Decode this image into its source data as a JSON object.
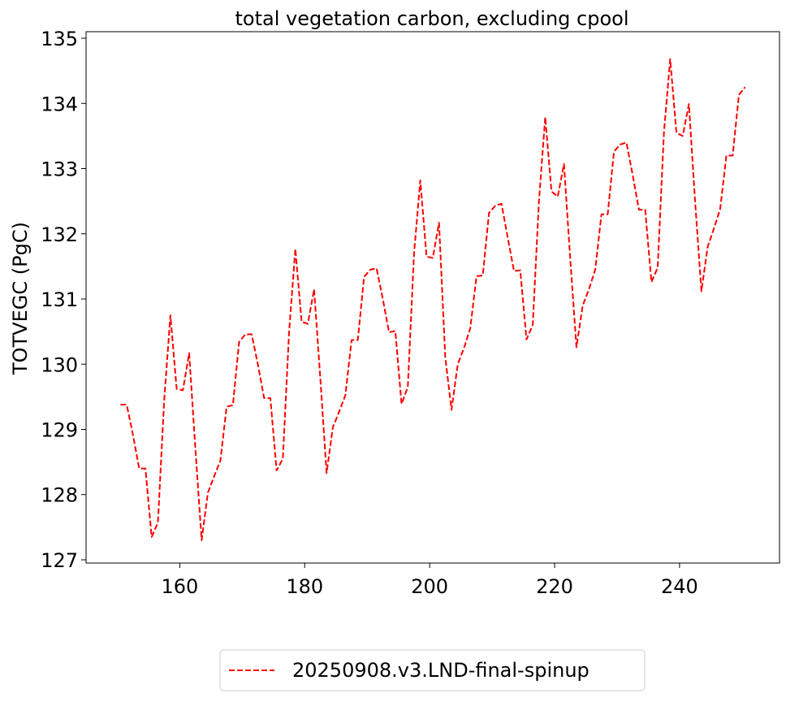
{
  "chart_data": {
    "type": "line",
    "title": "total vegetation carbon, excluding cpool",
    "xlabel": "",
    "ylabel": "TOTVEGC (PgC)",
    "xlim": [
      145,
      256
    ],
    "ylim": [
      126.95,
      135.1
    ],
    "xticks": [
      160,
      180,
      200,
      220,
      240
    ],
    "yticks": [
      127,
      128,
      129,
      130,
      131,
      132,
      133,
      134,
      135
    ],
    "grid": false,
    "legend_position": "bottom-center, below plot",
    "series": [
      {
        "name": "20250908.v3.LND-final-spinup",
        "color": "#ff0000",
        "line_style": "dashed",
        "x": [
          150.5,
          151.5,
          152.5,
          153.5,
          154.5,
          155.5,
          156.5,
          157.5,
          158.5,
          159.5,
          160.5,
          161.5,
          162.5,
          163.5,
          164.5,
          165.5,
          166.5,
          167.5,
          168.5,
          169.5,
          170.5,
          171.5,
          172.5,
          173.5,
          174.5,
          175.5,
          176.5,
          177.5,
          178.5,
          179.5,
          180.5,
          181.5,
          182.5,
          183.5,
          184.5,
          185.5,
          186.5,
          187.5,
          188.5,
          189.5,
          190.5,
          191.5,
          192.5,
          193.5,
          194.5,
          195.5,
          196.5,
          197.5,
          198.5,
          199.5,
          200.5,
          201.5,
          202.5,
          203.5,
          204.5,
          205.5,
          206.5,
          207.5,
          208.5,
          209.5,
          210.5,
          211.5,
          212.5,
          213.5,
          214.5,
          215.5,
          216.5,
          217.5,
          218.5,
          219.5,
          220.5,
          221.5,
          222.5,
          223.5,
          224.5,
          225.5,
          226.5,
          227.5,
          228.5,
          229.5,
          230.5,
          231.5,
          232.5,
          233.5,
          234.5,
          235.5,
          236.5,
          237.5,
          238.5,
          239.5,
          240.5,
          241.5,
          242.5,
          243.5,
          244.5,
          245.5,
          246.5,
          247.5,
          248.5,
          249.5,
          250.5
        ],
        "values": [
          129.38,
          129.38,
          128.92,
          128.4,
          128.4,
          127.35,
          127.57,
          129.44,
          130.75,
          129.62,
          129.6,
          130.17,
          128.7,
          127.3,
          128.03,
          128.28,
          128.52,
          129.35,
          129.37,
          130.34,
          130.46,
          130.46,
          130.0,
          129.48,
          129.48,
          128.37,
          128.55,
          130.5,
          131.77,
          130.65,
          130.62,
          131.15,
          129.78,
          128.33,
          129.03,
          129.27,
          129.52,
          130.37,
          130.37,
          131.34,
          131.45,
          131.47,
          131.0,
          130.49,
          130.51,
          129.39,
          129.65,
          131.7,
          132.82,
          131.65,
          131.63,
          132.17,
          130.1,
          129.3,
          130.0,
          130.25,
          130.55,
          131.35,
          131.36,
          132.32,
          132.43,
          132.46,
          131.94,
          131.43,
          131.44,
          130.38,
          130.6,
          132.51,
          133.79,
          132.65,
          132.57,
          133.07,
          131.62,
          130.26,
          130.9,
          131.15,
          131.45,
          132.3,
          132.3,
          133.26,
          133.37,
          133.4,
          132.9,
          132.37,
          132.37,
          131.26,
          131.48,
          133.55,
          134.68,
          133.55,
          133.5,
          133.99,
          132.48,
          131.12,
          131.8,
          132.08,
          132.38,
          133.2,
          133.2,
          134.13,
          134.25
        ]
      }
    ]
  }
}
